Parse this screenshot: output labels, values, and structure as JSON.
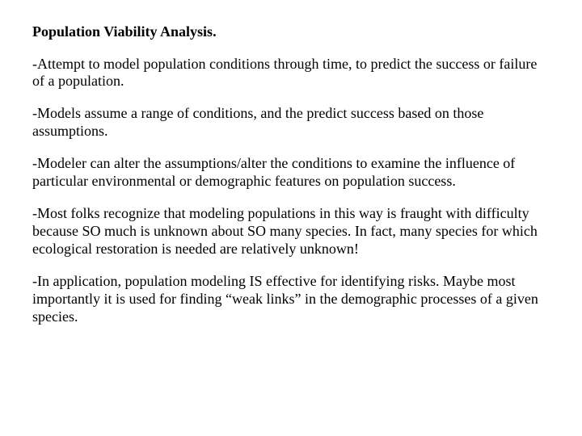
{
  "slide": {
    "background_color": "#ffffff",
    "text_color": "#000000",
    "font_family": "Times New Roman",
    "title": "Population Viability Analysis.",
    "title_fontsize": 18,
    "title_fontweight": "bold",
    "body_fontsize": 18,
    "paragraphs": [
      "-Attempt to model population conditions through time, to predict the success or failure of a population.",
      "-Models assume a range of conditions, and the predict success based on those assumptions.",
      "-Modeler can alter the assumptions/alter the conditions to examine the influence of particular environmental or demographic features on population success.",
      "-Most folks recognize that modeling populations in this way is fraught with difficulty because SO much is unknown about SO many species.  In fact, many species for which ecological restoration is needed are relatively unknown!",
      "-In application, population modeling IS effective for identifying risks.  Maybe most importantly it is used for finding “weak links” in the demographic processes of a given species."
    ]
  }
}
